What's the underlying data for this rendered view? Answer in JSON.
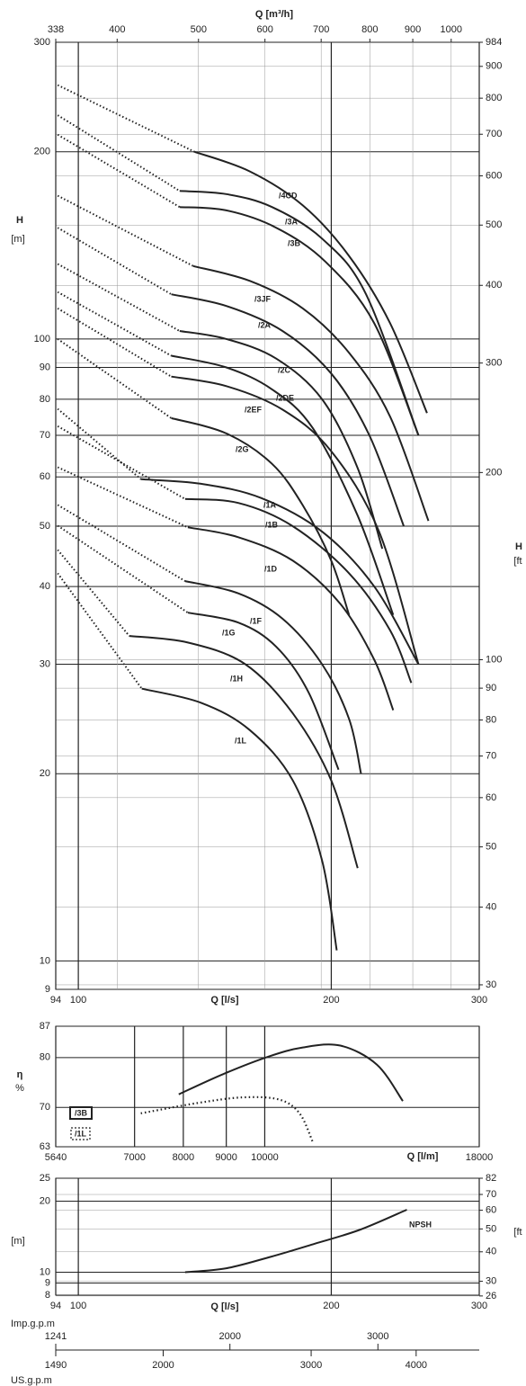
{
  "chart_data": [
    {
      "type": "line",
      "log_x": true,
      "log_y": true,
      "xlabel": "Q [l/s]",
      "x2label": "Q [m³/h]",
      "ylabel": "H",
      "yunit": "[m]",
      "y2label": "H",
      "y2unit": "[ft",
      "xlim": [
        94,
        300
      ],
      "xticks": [
        94,
        100,
        200,
        300
      ],
      "x2lim": [
        338,
        1080
      ],
      "x2ticks": [
        338,
        400,
        500,
        600,
        700,
        800,
        900,
        1000
      ],
      "ylim": [
        9,
        300
      ],
      "yticks": [
        300,
        200,
        100,
        90,
        80,
        70,
        60,
        50,
        40,
        30,
        20,
        10,
        9
      ],
      "y2lim": [
        29.5,
        984
      ],
      "y2ticks": [
        984,
        900,
        800,
        700,
        600,
        500,
        400,
        300,
        200,
        100,
        90,
        80,
        70,
        60,
        50,
        40,
        30
      ],
      "color": "#222",
      "grid": true,
      "series": [
        {
          "name": "/4CD",
          "dotted_x": [
            94.5,
            137.5
          ],
          "dotted_values": [
            256,
            200
          ],
          "x": [
            137.5,
            160,
            185,
            210,
            235,
            260
          ],
          "values": [
            200,
            186,
            164,
            136,
            106,
            76
          ]
        },
        {
          "name": "/3A",
          "dotted_x": [
            94.5,
            132
          ],
          "dotted_values": [
            229,
            173
          ],
          "x": [
            132,
            150,
            170,
            195,
            220,
            254
          ],
          "values": [
            173,
            171,
            163,
            145,
            118,
            70
          ]
        },
        {
          "name": "/3B",
          "dotted_x": [
            94.5,
            132
          ],
          "dotted_values": [
            213,
            163
          ],
          "x": [
            132,
            150,
            172,
            197,
            225,
            254
          ],
          "values": [
            163,
            161,
            151,
            133,
            106,
            70
          ]
        },
        {
          "name": "/3JF",
          "dotted_x": [
            94.5,
            137
          ],
          "dotted_values": [
            170,
            131
          ],
          "x": [
            137,
            160,
            185,
            210,
            235,
            261
          ],
          "values": [
            131,
            124,
            112,
            95,
            75,
            51
          ]
        },
        {
          "name": "/2A",
          "dotted_x": [
            94.5,
            129
          ],
          "dotted_values": [
            151,
            118
          ],
          "x": [
            129,
            150,
            175,
            200,
            222,
            244
          ],
          "values": [
            118,
            113,
            103,
            88,
            70,
            50
          ]
        },
        {
          "name": "/2C",
          "dotted_x": [
            94.5,
            132
          ],
          "dotted_values": [
            132,
            103
          ],
          "x": [
            132,
            150,
            172,
            195,
            215,
            230
          ],
          "values": [
            103,
            100,
            93,
            80,
            62,
            46
          ]
        },
        {
          "name": "/2DE",
          "dotted_x": [
            94.5,
            129
          ],
          "dotted_values": [
            119,
            94
          ],
          "x": [
            129,
            150,
            170,
            190,
            215,
            237
          ],
          "values": [
            94,
            90,
            83,
            72,
            52,
            36
          ]
        },
        {
          "name": "/2EF",
          "dotted_x": [
            94.5,
            129
          ],
          "dotted_values": [
            112,
            87
          ],
          "x": [
            129,
            150,
            175,
            200,
            228,
            254
          ],
          "values": [
            87,
            84,
            77,
            66,
            49,
            30
          ]
        },
        {
          "name": "/2G",
          "dotted_x": [
            94.5,
            129
          ],
          "dotted_values": [
            100,
            74.6
          ],
          "x": [
            129,
            150,
            170,
            185,
            200,
            210
          ],
          "values": [
            74.6,
            70.5,
            63,
            54,
            44,
            36
          ]
        },
        {
          "name": "/1A",
          "dotted_x": [
            94.5,
            118.7
          ],
          "dotted_values": [
            77.2,
            59.5
          ],
          "x": [
            118.7,
            140,
            165,
            195,
            225,
            254
          ],
          "values": [
            59.5,
            58.5,
            55.5,
            49,
            40,
            30
          ]
        },
        {
          "name": "/1B",
          "dotted_x": [
            94.5,
            134
          ],
          "dotted_values": [
            72.4,
            55.3
          ],
          "x": [
            134,
            155,
            180,
            210,
            235,
            249
          ],
          "values": [
            55.3,
            54.5,
            50,
            42,
            34,
            28
          ]
        },
        {
          "name": "/1D",
          "dotted_x": [
            94.5,
            135
          ],
          "dotted_values": [
            62.2,
            49.8
          ],
          "x": [
            135,
            155,
            180,
            205,
            225,
            237
          ],
          "values": [
            49.8,
            48,
            44,
            37.5,
            30.5,
            25.3
          ]
        },
        {
          "name": "/1F",
          "dotted_x": [
            94.5,
            134
          ],
          "dotted_values": [
            54.1,
            40.8
          ],
          "x": [
            134,
            155,
            175,
            195,
            210,
            217
          ],
          "values": [
            40.8,
            39,
            35.5,
            30,
            24.5,
            20
          ]
        },
        {
          "name": "/1G",
          "dotted_x": [
            94.5,
            135
          ],
          "dotted_values": [
            50.1,
            36.3
          ],
          "x": [
            135,
            155,
            172,
            188,
            204
          ],
          "values": [
            36.3,
            35,
            32,
            27,
            20.3
          ]
        },
        {
          "name": "/1H",
          "dotted_x": [
            94.5,
            115
          ],
          "dotted_values": [
            45.8,
            33.3
          ],
          "x": [
            115,
            135,
            158,
            180,
            200,
            215
          ],
          "values": [
            33.3,
            32.5,
            30,
            25,
            19.5,
            14.1
          ]
        },
        {
          "name": "/1L",
          "dotted_x": [
            94.5,
            119
          ],
          "dotted_values": [
            42,
            27.4
          ],
          "x": [
            119,
            140,
            160,
            180,
            195,
            203
          ],
          "values": [
            27.4,
            26,
            23.5,
            19.5,
            14.5,
            10.4
          ]
        }
      ]
    },
    {
      "type": "line",
      "log_x": true,
      "log_y": true,
      "xlabel": "Q [l/m]",
      "ylabel": "η",
      "yunit": "%",
      "xlim": [
        5640,
        18000
      ],
      "xticks": [
        5640,
        7000,
        8000,
        9000,
        10000,
        18000
      ],
      "ylim": [
        63,
        87
      ],
      "yticks": [
        87,
        80,
        70,
        63
      ],
      "grid": true,
      "series": [
        {
          "name": "/3B",
          "style": "solid",
          "color": "#222",
          "x": [
            7900,
            8940,
            10100,
            11100,
            12300,
            13600,
            14600
          ],
          "values": [
            72.5,
            76.6,
            80.2,
            82.2,
            82.6,
            78.5,
            71.2
          ]
        },
        {
          "name": "/1L",
          "style": "dotted",
          "color": "#222",
          "x": [
            7120,
            8300,
            9400,
            10400,
            11000,
            11400
          ],
          "values": [
            68.9,
            70.8,
            71.9,
            71.5,
            68.9,
            63.9
          ]
        }
      ]
    },
    {
      "type": "line",
      "log_x": true,
      "log_y": true,
      "xlabel": "Q [l/s]",
      "yunit": "[m]",
      "y2unit": "[ft",
      "xlim": [
        94,
        300
      ],
      "xticks": [
        94,
        100,
        200,
        300
      ],
      "ylim": [
        8,
        25
      ],
      "yticks": [
        25,
        20,
        10,
        9,
        8
      ],
      "y2lim": [
        26.2,
        82
      ],
      "y2ticks": [
        82,
        70,
        60,
        50,
        40,
        30,
        26
      ],
      "grid": true,
      "series": [
        {
          "name": "NPSH",
          "color": "#222",
          "x": [
            134,
            150,
            169,
            191,
            216,
            246
          ],
          "values": [
            10,
            10.4,
            11.6,
            13.2,
            15.1,
            18.4
          ]
        }
      ]
    },
    {
      "type": "scale",
      "log_x": true,
      "xlabel": "Imp.g.p.m",
      "xlim": [
        1241,
        3960
      ],
      "xticks": [
        1241,
        2000,
        3000
      ],
      "x2label": "US.g.p.m",
      "x2lim": [
        1490,
        4755
      ],
      "x2ticks": [
        1490,
        2000,
        3000,
        4000
      ]
    }
  ]
}
